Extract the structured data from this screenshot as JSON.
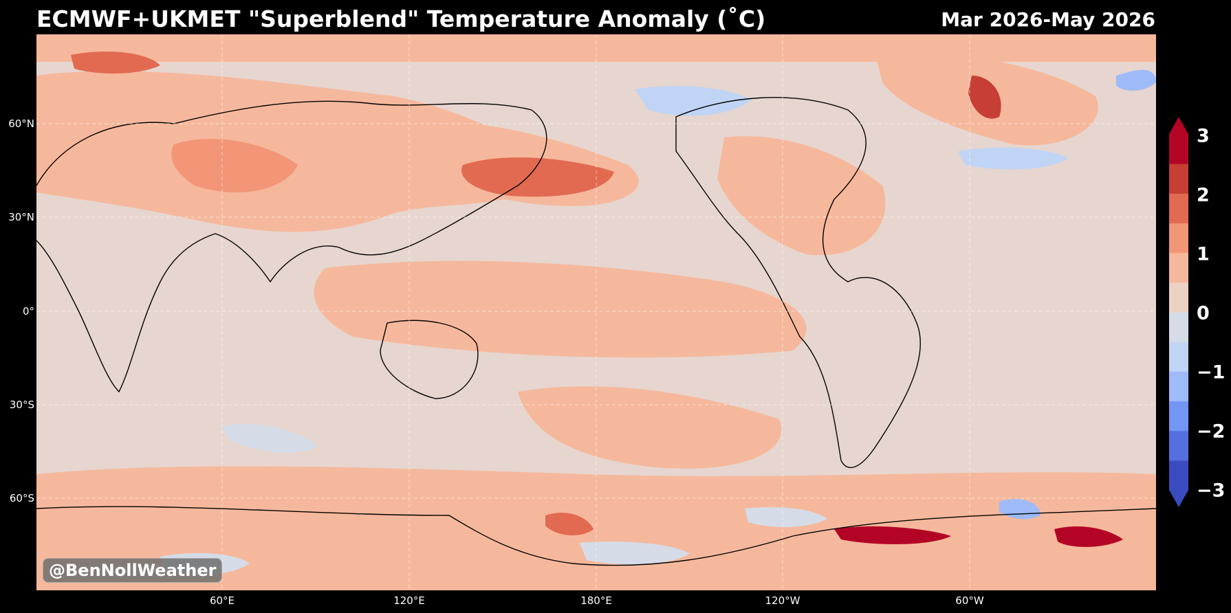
{
  "header": {
    "title": "ECMWF+UKMET \"Superblend\" Temperature Anomaly (˚C)",
    "period": "Mar 2026-May 2026"
  },
  "map": {
    "projection": "equirectangular, Pacific-centered",
    "lat_labels": [
      "60°N",
      "30°N",
      "0°",
      "30°S",
      "60°S"
    ],
    "lon_labels": [
      "60°E",
      "120°E",
      "180°E",
      "120°W",
      "60°W"
    ],
    "grid": "dashed white",
    "background_color": "#e6d6cf"
  },
  "colorbar": {
    "ticks": [
      "3",
      "2",
      "1",
      "0",
      "−1",
      "−2",
      "−3"
    ],
    "min": -3,
    "max": 3,
    "step": 0.5,
    "extend": "both",
    "colors": [
      "#3b4cc0",
      "#5470de",
      "#7396f5",
      "#9ebaf9",
      "#c0d4f5",
      "#d5dce8",
      "#edd1c2",
      "#f6b89c",
      "#f29677",
      "#e16a51",
      "#c63e34",
      "#b40426"
    ]
  },
  "watermark": "@BenNollWeather"
}
